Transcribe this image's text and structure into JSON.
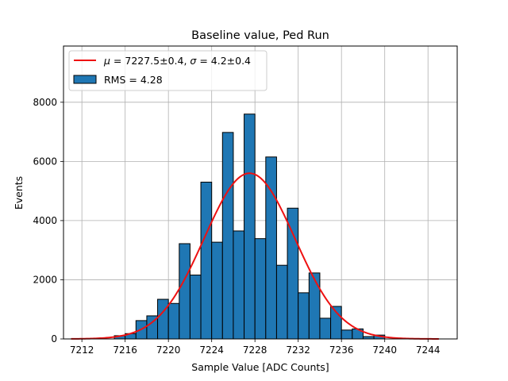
{
  "chart_data": {
    "type": "bar",
    "title": "Baseline value, Ped Run",
    "xlabel": "Sample Value [ADC Counts]",
    "ylabel": "Events",
    "xlim": [
      7210.3,
      7246.7
    ],
    "ylim": [
      0,
      9900
    ],
    "grid": true,
    "legend_position": "top-left",
    "x_ticks": [
      7212,
      7216,
      7220,
      7224,
      7228,
      7232,
      7236,
      7240,
      7244
    ],
    "y_ticks": [
      0,
      2000,
      4000,
      6000,
      8000
    ],
    "bin_width": 1,
    "histogram": {
      "name": "RMS = 4.28",
      "color": "#1f77b4",
      "edge_color": "#000000",
      "bins": [
        {
          "left": 7215,
          "value": 110
        },
        {
          "left": 7216,
          "value": 180
        },
        {
          "left": 7217,
          "value": 620
        },
        {
          "left": 7218,
          "value": 780
        },
        {
          "left": 7219,
          "value": 1340
        },
        {
          "left": 7220,
          "value": 1200
        },
        {
          "left": 7221,
          "value": 3220
        },
        {
          "left": 7222,
          "value": 2160
        },
        {
          "left": 7223,
          "value": 5300
        },
        {
          "left": 7224,
          "value": 3270
        },
        {
          "left": 7225,
          "value": 6980
        },
        {
          "left": 7226,
          "value": 3650
        },
        {
          "left": 7227,
          "value": 7600
        },
        {
          "left": 7228,
          "value": 3390
        },
        {
          "left": 7229,
          "value": 6150
        },
        {
          "left": 7230,
          "value": 2490
        },
        {
          "left": 7231,
          "value": 4420
        },
        {
          "left": 7232,
          "value": 1560
        },
        {
          "left": 7233,
          "value": 2230
        },
        {
          "left": 7234,
          "value": 700
        },
        {
          "left": 7235,
          "value": 1100
        },
        {
          "left": 7236,
          "value": 300
        },
        {
          "left": 7237,
          "value": 340
        },
        {
          "left": 7238,
          "value": 80
        },
        {
          "left": 7239,
          "value": 130
        }
      ]
    },
    "fit": {
      "name": "μ = 7227.5±0.4, σ = 4.2±0.4",
      "legend_parts": {
        "mu_symbol": "μ",
        "mu_text": " = 7227.5±0.4, ",
        "sigma_symbol": "σ",
        "sigma_text": " = 4.2±0.4"
      },
      "type": "gaussian",
      "color": "#ee1111",
      "mean": 7227.5,
      "sigma": 4.2,
      "amplitude": 5600,
      "x_range": [
        7211,
        7245
      ]
    }
  }
}
